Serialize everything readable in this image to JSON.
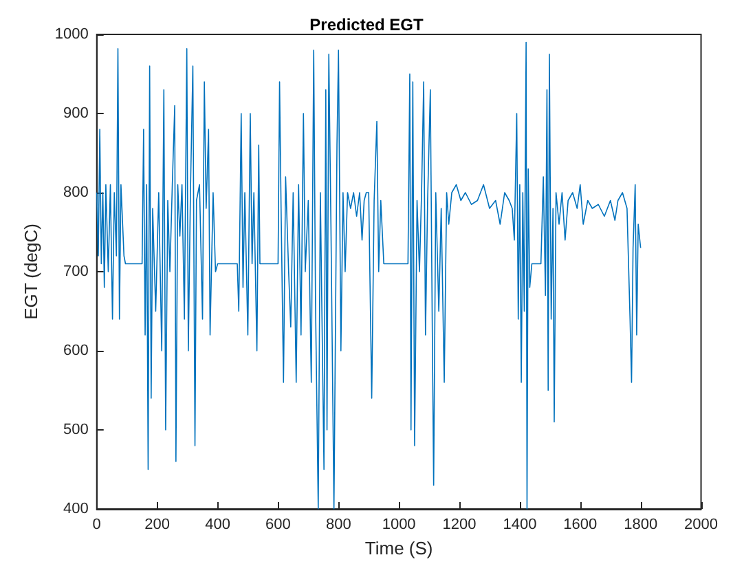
{
  "chart_data": {
    "type": "line",
    "title": "Predicted EGT",
    "xlabel": "Time (S)",
    "ylabel": "EGT (degC)",
    "xlim": [
      0,
      2000
    ],
    "xticks": [
      0,
      200,
      400,
      600,
      800,
      1000,
      1200,
      1400,
      1600,
      1800,
      2000
    ],
    "ylim": [
      400,
      1000
    ],
    "yticks": [
      400,
      500,
      600,
      700,
      800,
      900,
      1000
    ],
    "grid": false,
    "marker": "none",
    "line_style": "solid",
    "x": [
      0,
      5,
      10,
      15,
      20,
      25,
      30,
      38,
      45,
      52,
      58,
      65,
      70,
      75,
      80,
      90,
      95,
      150,
      155,
      160,
      165,
      170,
      175,
      180,
      185,
      195,
      205,
      215,
      222,
      228,
      235,
      242,
      250,
      258,
      262,
      268,
      275,
      282,
      290,
      298,
      303,
      310,
      318,
      325,
      330,
      340,
      350,
      356,
      362,
      370,
      375,
      385,
      393,
      400,
      465,
      470,
      478,
      484,
      490,
      500,
      508,
      514,
      520,
      530,
      536,
      540,
      550,
      600,
      605,
      610,
      618,
      625,
      635,
      642,
      650,
      660,
      668,
      676,
      684,
      690,
      700,
      710,
      718,
      724,
      733,
      740,
      752,
      758,
      762,
      768,
      775,
      785,
      795,
      800,
      808,
      815,
      822,
      830,
      840,
      850,
      860,
      870,
      878,
      885,
      892,
      900,
      910,
      918,
      927,
      933,
      940,
      950,
      960,
      1030,
      1036,
      1040,
      1046,
      1052,
      1060,
      1068,
      1075,
      1082,
      1088,
      1095,
      1104,
      1110,
      1115,
      1122,
      1132,
      1140,
      1150,
      1158,
      1165,
      1175,
      1190,
      1205,
      1220,
      1240,
      1260,
      1280,
      1300,
      1320,
      1335,
      1350,
      1365,
      1375,
      1382,
      1390,
      1395,
      1400,
      1405,
      1410,
      1415,
      1421,
      1424,
      1428,
      1433,
      1440,
      1470,
      1478,
      1485,
      1490,
      1494,
      1498,
      1504,
      1510,
      1514,
      1520,
      1530,
      1540,
      1550,
      1560,
      1575,
      1590,
      1600,
      1610,
      1625,
      1640,
      1660,
      1680,
      1700,
      1715,
      1725,
      1740,
      1755,
      1765,
      1770,
      1775,
      1782,
      1787,
      1792,
      1800
    ],
    "series": [
      {
        "color": "#0072bd",
        "values": [
          800,
          720,
          880,
          710,
          800,
          680,
          810,
          700,
          810,
          640,
          800,
          720,
          982,
          640,
          810,
          720,
          710,
          710,
          880,
          620,
          810,
          450,
          960,
          540,
          780,
          650,
          800,
          600,
          930,
          500,
          790,
          700,
          810,
          910,
          460,
          810,
          745,
          810,
          640,
          982,
          600,
          800,
          960,
          480,
          790,
          810,
          640,
          940,
          780,
          880,
          620,
          800,
          700,
          710,
          710,
          650,
          900,
          680,
          800,
          620,
          900,
          710,
          800,
          600,
          860,
          710,
          710,
          710,
          940,
          780,
          560,
          820,
          700,
          630,
          800,
          560,
          810,
          620,
          900,
          700,
          790,
          560,
          980,
          660,
          400,
          800,
          450,
          930,
          500,
          975,
          760,
          400,
          860,
          980,
          600,
          800,
          700,
          800,
          780,
          800,
          770,
          800,
          740,
          790,
          800,
          800,
          540,
          790,
          890,
          700,
          790,
          710,
          710,
          710,
          950,
          500,
          940,
          480,
          790,
          700,
          800,
          940,
          620,
          790,
          930,
          650,
          430,
          800,
          650,
          780,
          560,
          800,
          760,
          800,
          810,
          790,
          800,
          785,
          790,
          810,
          780,
          790,
          760,
          800,
          790,
          780,
          740,
          900,
          640,
          810,
          560,
          800,
          650,
          990,
          400,
          830,
          680,
          710,
          710,
          820,
          670,
          930,
          550,
          975,
          640,
          780,
          510,
          800,
          760,
          800,
          740,
          790,
          800,
          780,
          810,
          760,
          790,
          780,
          785,
          770,
          790,
          765,
          790,
          800,
          780,
          640,
          560,
          730,
          810,
          620,
          760,
          730
        ]
      }
    ]
  }
}
